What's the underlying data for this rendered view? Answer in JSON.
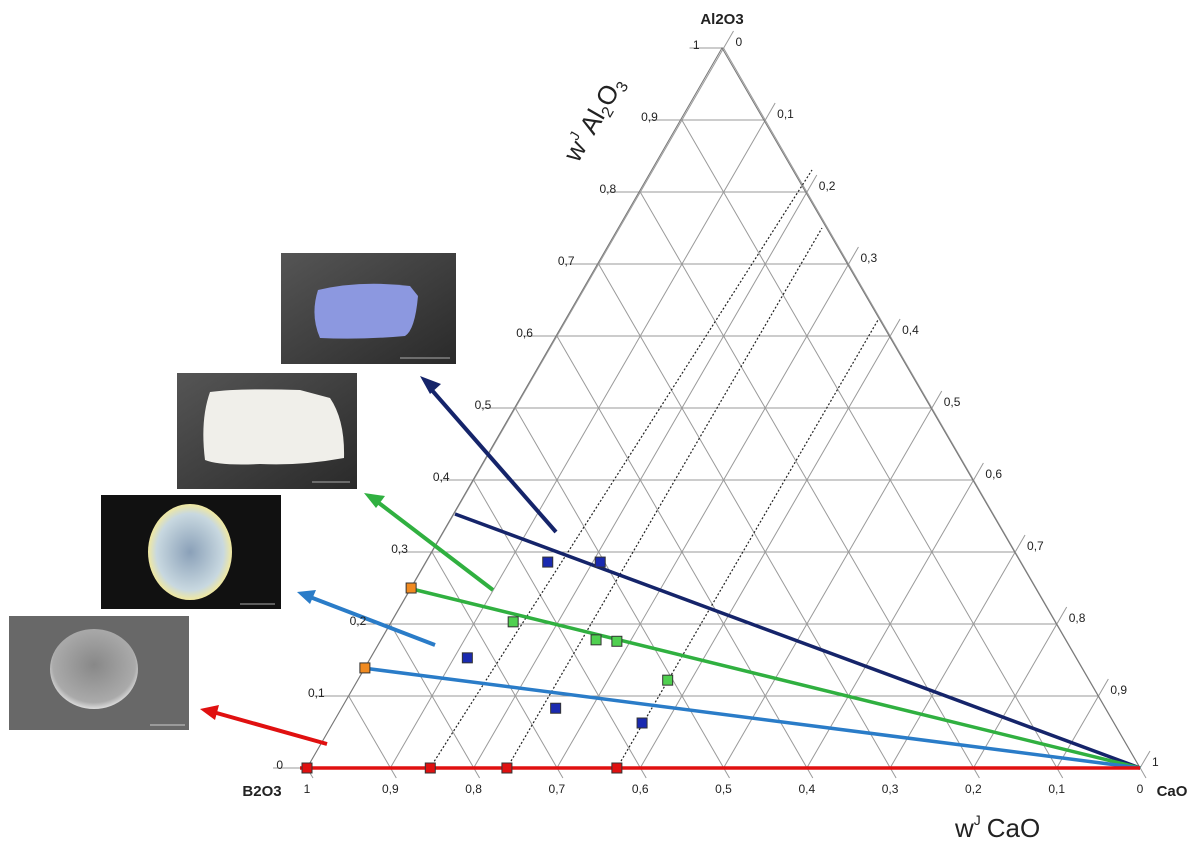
{
  "chart_data": {
    "type": "ternary",
    "corners": {
      "top": "Al2O3",
      "left": "B2O3",
      "right": "CaO"
    },
    "left_axis_title": [
      "w",
      "J",
      "Al",
      "2",
      "O",
      "3"
    ],
    "bottom_axis_title": [
      "w",
      "J",
      "CaO"
    ],
    "left_ticks": [
      0,
      {
        "value": 0.1,
        "label": "0,1"
      },
      {
        "value": 0.2,
        "label": "0,2"
      },
      {
        "value": 0.3,
        "label": "0,3"
      },
      {
        "value": 0.4,
        "label": "0,4"
      },
      {
        "value": 0.5,
        "label": "0,5"
      },
      {
        "value": 0.6,
        "label": "0,6"
      },
      {
        "value": 0.7,
        "label": "0,7"
      },
      {
        "value": 0.8,
        "label": "0,8"
      },
      {
        "value": 0.9,
        "label": "0,9"
      },
      1
    ],
    "bottom_ticks": [
      1,
      {
        "value": 0.9,
        "label": "0,9"
      },
      {
        "value": 0.8,
        "label": "0,8"
      },
      {
        "value": 0.7,
        "label": "0,7"
      },
      {
        "value": 0.6,
        "label": "0,6"
      },
      {
        "value": 0.5,
        "label": "0,5"
      },
      {
        "value": 0.4,
        "label": "0,4"
      },
      {
        "value": 0.3,
        "label": "0,3"
      },
      {
        "value": 0.2,
        "label": "0,2"
      },
      {
        "value": 0.1,
        "label": "0,1"
      },
      0
    ],
    "right_ticks": [
      0,
      {
        "value": 0.1,
        "label": "0,1"
      },
      {
        "value": 0.2,
        "label": "0,2"
      },
      {
        "value": 0.3,
        "label": "0,3"
      },
      {
        "value": 0.4,
        "label": "0,4"
      },
      {
        "value": 0.5,
        "label": "0,5"
      },
      {
        "value": 0.6,
        "label": "0,6"
      },
      {
        "value": 0.7,
        "label": "0,7"
      },
      {
        "value": 0.8,
        "label": "0,8"
      },
      {
        "value": 0.9,
        "label": "0,9"
      },
      1
    ],
    "grid": true,
    "series": [
      {
        "color": "#e01010",
        "al2o3": [
          0,
          0,
          0,
          0
        ],
        "cao": [
          0,
          0.148,
          0.24,
          0.372
        ]
      },
      {
        "color": "#f08a20",
        "al2o3": [
          0.25,
          0.139
        ],
        "cao": [
          0,
          0
        ]
      },
      {
        "color": "#50d050",
        "al2o3": [
          0.203,
          0.178,
          0.176,
          0.122
        ],
        "cao": [
          0.146,
          0.258,
          0.284,
          0.372
        ]
      },
      {
        "color": "#1a2ab0",
        "al2o3": [
          0.286,
          0.286,
          0.153,
          0.083,
          0.0625
        ],
        "cao": [
          0.146,
          0.209,
          0.116,
          0.257,
          0.371
        ]
      }
    ]
  }
}
